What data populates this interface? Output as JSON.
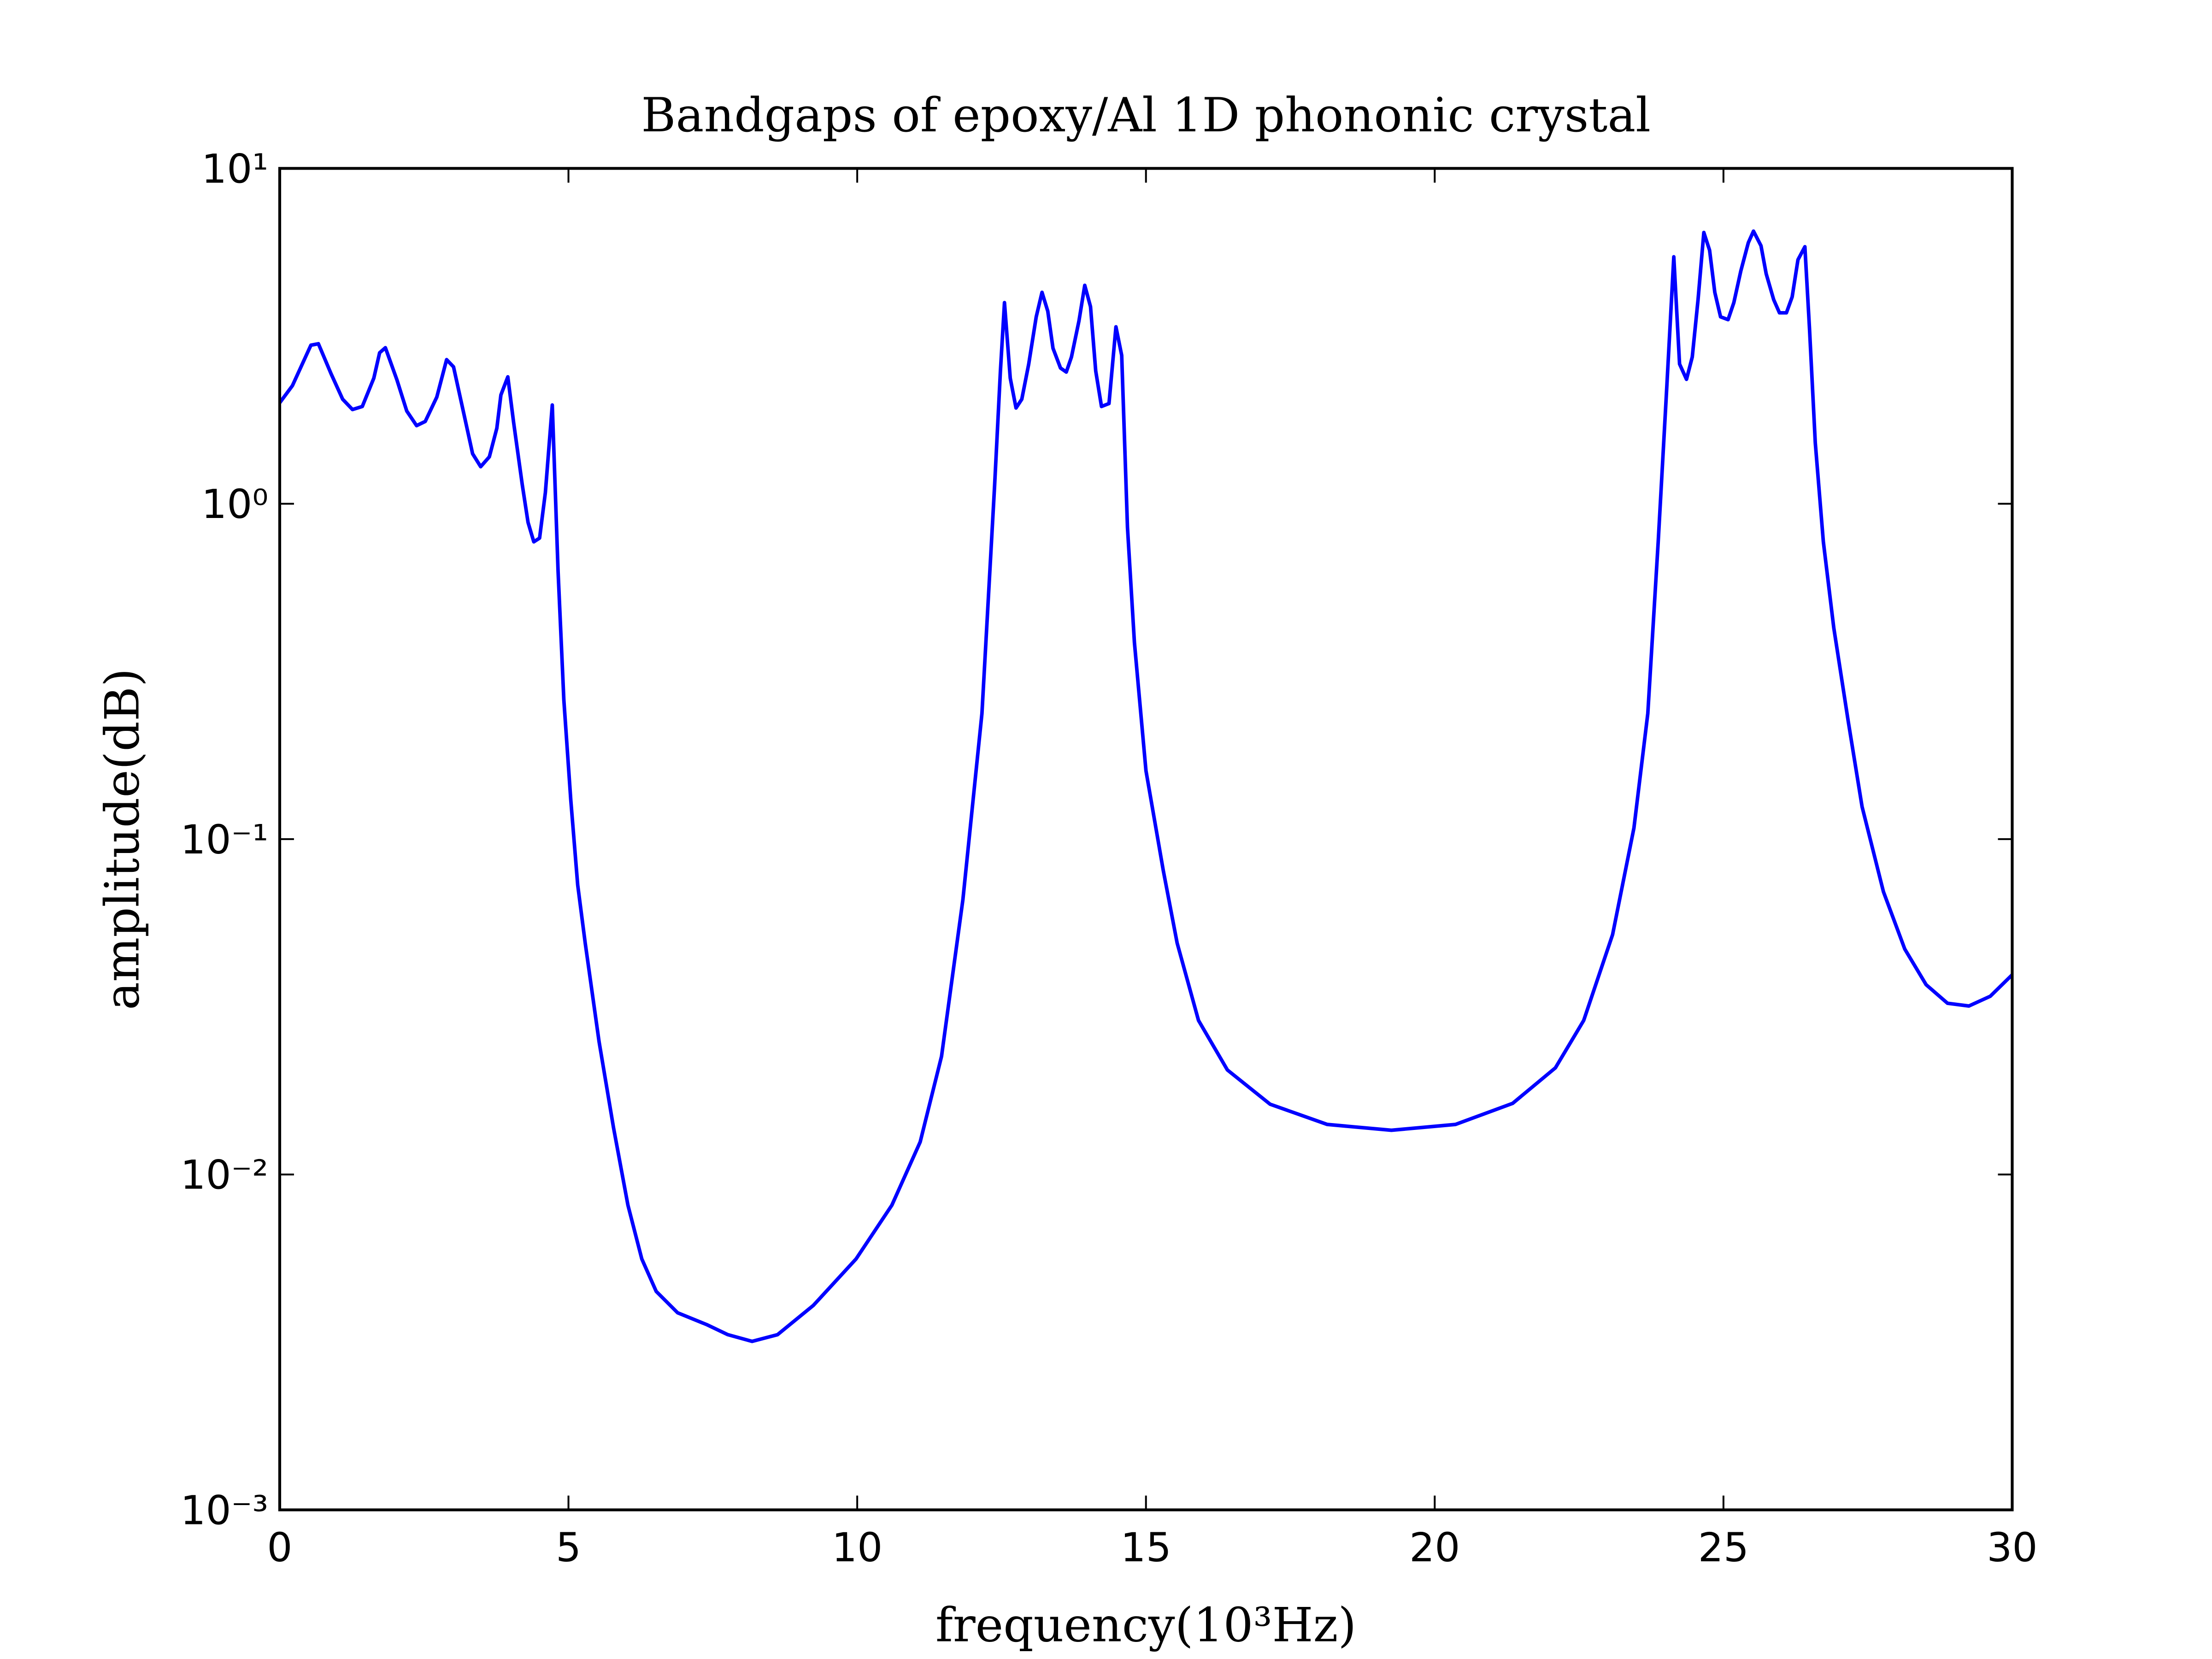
{
  "chart_data": {
    "type": "line",
    "title": "Bandgaps of epoxy/Al 1D phononic crystal",
    "x_label": "frequency(10³Hz)",
    "y_label": "amplitude(dB)",
    "color": "#0000ff",
    "log_y": true,
    "xlim": [
      0,
      30
    ],
    "xticks": [
      0,
      5,
      10,
      15,
      20,
      25,
      30
    ],
    "ylim": [
      0.001,
      10
    ],
    "yticks": [
      {
        "value": 0.001,
        "label": "10⁻³"
      },
      {
        "value": 0.01,
        "label": "10⁻²"
      },
      {
        "value": 0.1,
        "label": "10⁻¹"
      },
      {
        "value": 1,
        "label": "10⁰"
      },
      {
        "value": 10,
        "label": "10¹"
      }
    ],
    "x": [
      0,
      0.22,
      0.54,
      0.67,
      0.89,
      1.09,
      1.26,
      1.43,
      1.63,
      1.73,
      1.83,
      2.03,
      2.2,
      2.37,
      2.52,
      2.72,
      2.89,
      3.01,
      3.19,
      3.34,
      3.48,
      3.63,
      3.76,
      3.83,
      3.95,
      4.05,
      4.2,
      4.3,
      4.4,
      4.5,
      4.6,
      4.72,
      4.82,
      4.92,
      5.04,
      5.16,
      5.29,
      5.53,
      5.78,
      6.03,
      6.27,
      6.52,
      6.89,
      7.39,
      7.76,
      8.18,
      8.62,
      9.24,
      9.98,
      10.6,
      11.09,
      11.46,
      11.83,
      12.16,
      12.38,
      12.48,
      12.55,
      12.65,
      12.75,
      12.85,
      12.97,
      13.1,
      13.2,
      13.3,
      13.39,
      13.52,
      13.62,
      13.71,
      13.84,
      13.94,
      14.04,
      14.13,
      14.23,
      14.36,
      14.48,
      14.58,
      14.68,
      14.8,
      15.0,
      15.3,
      15.54,
      15.91,
      16.41,
      17.15,
      18.14,
      19.25,
      20.36,
      21.35,
      22.09,
      22.58,
      23.08,
      23.45,
      23.69,
      23.87,
      24.02,
      24.14,
      24.24,
      24.36,
      24.46,
      24.56,
      24.66,
      24.76,
      24.85,
      24.95,
      25.08,
      25.18,
      25.3,
      25.43,
      25.52,
      25.65,
      25.74,
      25.87,
      25.97,
      26.09,
      26.19,
      26.29,
      26.41,
      26.49,
      26.59,
      26.73,
      26.91,
      27.16,
      27.4,
      27.77,
      28.14,
      28.51,
      28.88,
      29.25,
      29.62,
      30.0
    ],
    "values": [
      2.0,
      2.25,
      2.97,
      3.0,
      2.44,
      2.05,
      1.91,
      1.95,
      2.37,
      2.82,
      2.92,
      2.34,
      1.89,
      1.71,
      1.76,
      2.08,
      2.69,
      2.56,
      1.85,
      1.41,
      1.29,
      1.38,
      1.68,
      2.11,
      2.39,
      1.75,
      1.14,
      0.88,
      0.77,
      0.79,
      1.08,
      1.97,
      0.63,
      0.26,
      0.131,
      0.073,
      0.049,
      0.0249,
      0.0138,
      0.0081,
      0.0056,
      0.00448,
      0.00387,
      0.00357,
      0.00333,
      0.00318,
      0.00333,
      0.00407,
      0.0056,
      0.0081,
      0.0125,
      0.0225,
      0.066,
      0.237,
      1.14,
      2.49,
      3.98,
      2.37,
      1.93,
      2.05,
      2.61,
      3.61,
      4.27,
      3.75,
      2.91,
      2.54,
      2.47,
      2.74,
      3.51,
      4.48,
      3.87,
      2.49,
      1.95,
      1.99,
      3.37,
      2.77,
      0.85,
      0.386,
      0.16,
      0.0806,
      0.049,
      0.0288,
      0.0205,
      0.0162,
      0.0141,
      0.01355,
      0.0141,
      0.0163,
      0.0208,
      0.0288,
      0.0519,
      0.108,
      0.237,
      0.77,
      2.25,
      5.45,
      2.61,
      2.35,
      2.74,
      4.06,
      6.44,
      5.7,
      4.27,
      3.61,
      3.54,
      3.98,
      4.94,
      6.0,
      6.5,
      5.88,
      4.85,
      4.06,
      3.71,
      3.71,
      4.14,
      5.34,
      5.84,
      3.33,
      1.52,
      0.77,
      0.427,
      0.225,
      0.125,
      0.0697,
      0.047,
      0.0368,
      0.0324,
      0.0318,
      0.034,
      0.0394
    ]
  }
}
